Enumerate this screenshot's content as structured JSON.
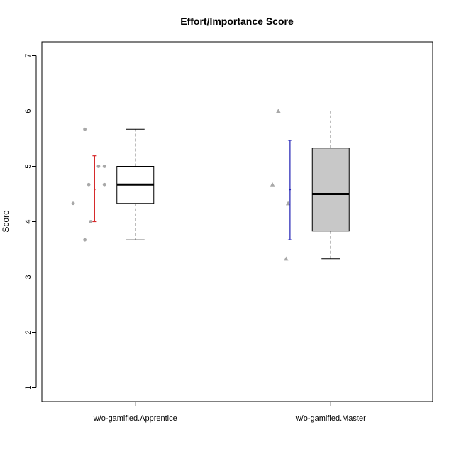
{
  "chart_data": {
    "type": "box",
    "title": "Effort/Importance Score",
    "xlabel": "",
    "ylabel": "Score",
    "ylim": [
      0.75,
      7.25
    ],
    "y_ticks": [
      "1",
      "2",
      "3",
      "4",
      "5",
      "6",
      "7"
    ],
    "groups": [
      {
        "label": "w/o-gamified.Apprentice",
        "box": {
          "whisker_low": 3.67,
          "q1": 4.33,
          "median": 4.67,
          "q3": 5.0,
          "whisker_high": 5.67,
          "fill": "#ffffff"
        },
        "points": [
          {
            "offset": -0.34,
            "y": 4.33
          },
          {
            "offset": -0.28,
            "y": 5.67
          },
          {
            "offset": -0.28,
            "y": 3.67
          },
          {
            "offset": -0.26,
            "y": 4.67
          },
          {
            "offset": -0.25,
            "y": 4.0
          },
          {
            "offset": -0.21,
            "y": 5.0
          },
          {
            "offset": -0.18,
            "y": 5.0
          },
          {
            "offset": -0.18,
            "y": 4.67
          }
        ],
        "point_shape": "circle",
        "errorbar": {
          "center": 4.58,
          "low": 4.0,
          "high": 5.19,
          "color": "#d62728"
        }
      },
      {
        "label": "w/o-gamified.Master",
        "box": {
          "whisker_low": 3.33,
          "q1": 3.83,
          "median": 4.5,
          "q3": 5.33,
          "whisker_high": 6.0,
          "fill": "#c8c8c8"
        },
        "points": [
          {
            "offset": -0.29,
            "y": 6.0
          },
          {
            "offset": -0.32,
            "y": 4.67
          },
          {
            "offset": -0.24,
            "y": 4.33
          },
          {
            "offset": -0.25,
            "y": 3.33
          }
        ],
        "point_shape": "triangle",
        "errorbar": {
          "center": 4.58,
          "low": 3.67,
          "high": 5.47,
          "color": "#1f1fb4"
        }
      }
    ],
    "point_color": "#a8a8a8"
  }
}
